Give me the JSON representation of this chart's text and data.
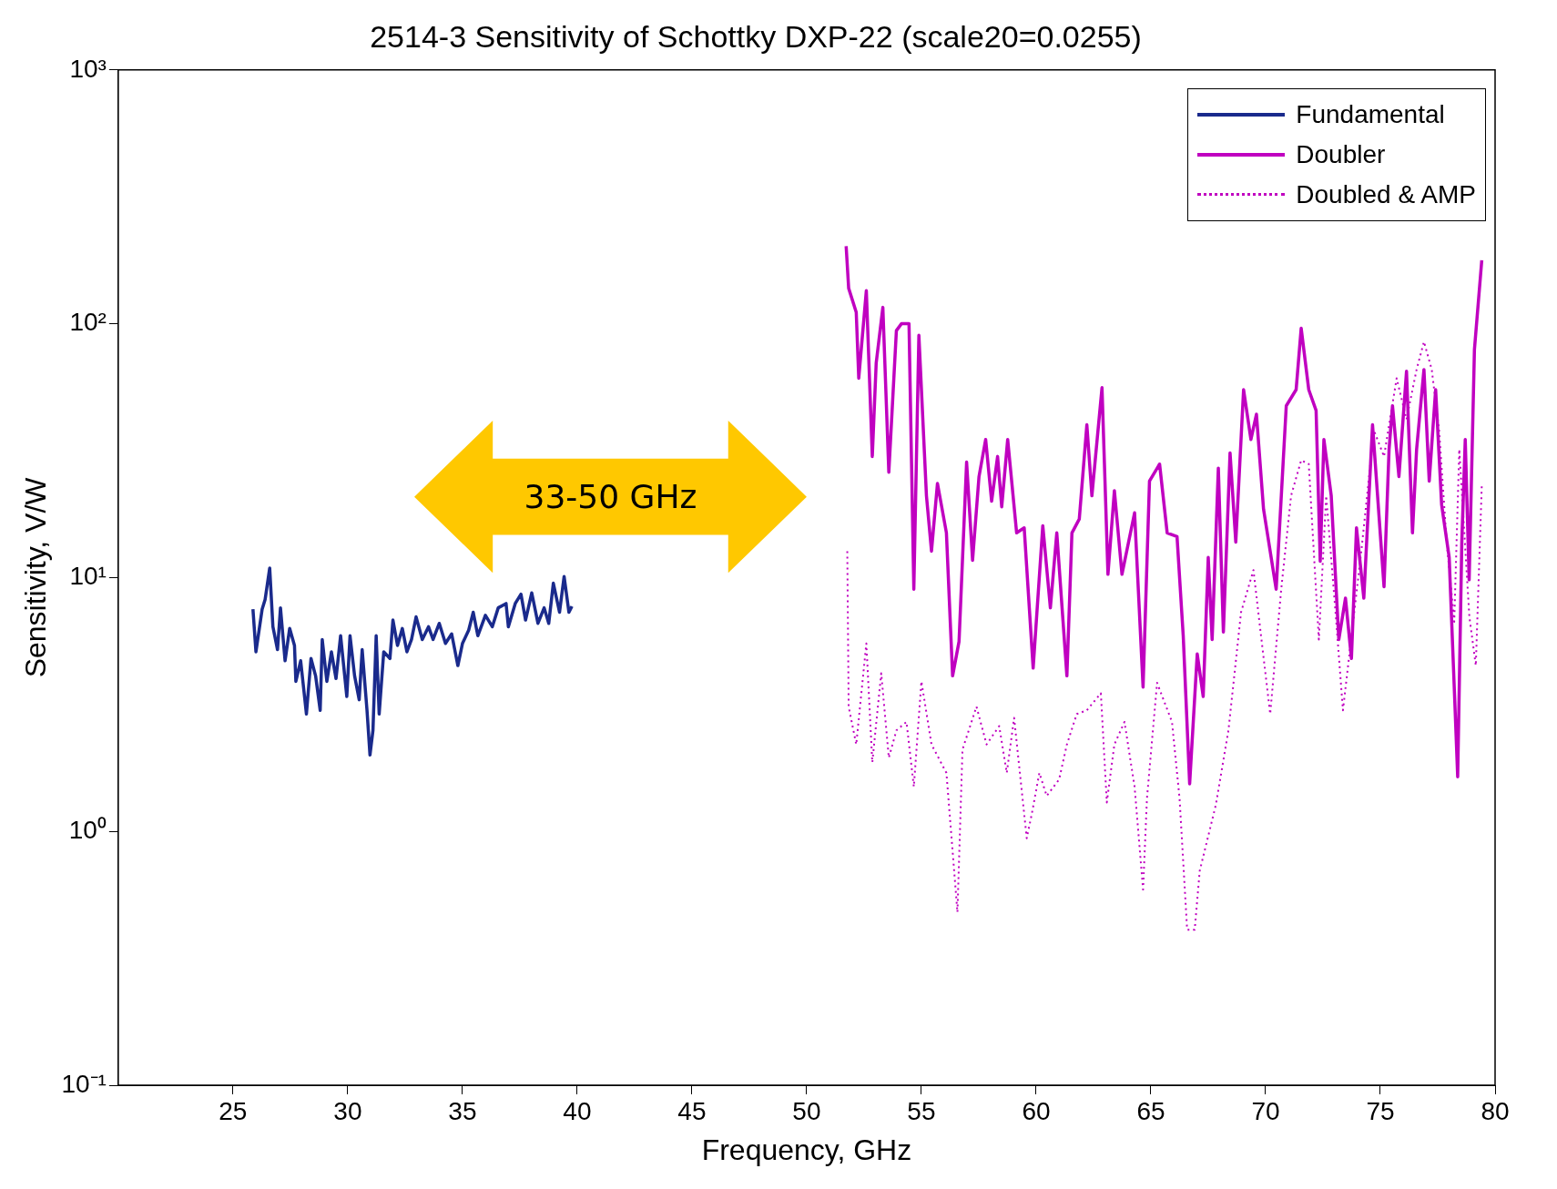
{
  "chart_data": {
    "type": "line",
    "title": "2514-3 Sensitivity of Schottky DXP-22 (scale20=0.0255)",
    "xlabel": "Frequency, GHz",
    "ylabel": "Sensitivity, V/W",
    "log": "y",
    "grid": false,
    "legend": "top right",
    "marker": "none",
    "xlim": [
      20,
      80
    ],
    "xticks": [
      25,
      30,
      35,
      40,
      45,
      50,
      55,
      60,
      65,
      70,
      75,
      80
    ],
    "ylim": [
      0.1,
      1000
    ],
    "yticks": [
      {
        "value": 0.1,
        "label": "10⁻¹"
      },
      {
        "value": 1,
        "label": "10⁰"
      },
      {
        "value": 10,
        "label": "10¹"
      },
      {
        "value": 100,
        "label": "10²"
      },
      {
        "value": 1000,
        "label": "10³"
      }
    ],
    "annotations": [
      "33-50 GHz"
    ],
    "series": [
      {
        "name": "Fundamental",
        "color": "#1a2a8c",
        "line_style": "solid",
        "x": [
          25.87,
          26.0,
          26.27,
          26.4,
          26.6,
          26.74,
          26.94,
          27.07,
          27.27,
          27.47,
          27.68,
          27.74,
          27.95,
          28.2,
          28.4,
          28.6,
          28.8,
          28.89,
          29.09,
          29.29,
          29.49,
          29.69,
          29.96,
          30.1,
          30.3,
          30.5,
          30.63,
          30.84,
          30.97,
          31.1,
          31.24,
          31.37,
          31.57,
          31.84,
          31.97,
          32.17,
          32.38,
          32.58,
          32.78,
          32.98,
          33.25,
          33.52,
          33.72,
          33.99,
          34.26,
          34.53,
          34.8,
          35.0,
          35.27,
          35.47,
          35.67,
          36.0,
          36.3,
          36.56,
          36.9,
          37.0,
          37.3,
          37.55,
          37.75,
          38.02,
          38.29,
          38.56,
          38.76,
          38.96,
          39.23,
          39.43,
          39.64,
          39.77
        ],
        "values": [
          7.5,
          5.1,
          7.5,
          8.2,
          10.9,
          6.4,
          5.2,
          7.6,
          4.7,
          6.3,
          5.4,
          3.9,
          4.7,
          2.9,
          4.8,
          4.1,
          3.0,
          5.7,
          3.9,
          5.1,
          4.0,
          5.9,
          3.4,
          5.9,
          4.1,
          3.3,
          5.2,
          3.0,
          2.0,
          2.5,
          5.9,
          2.9,
          5.1,
          4.8,
          6.8,
          5.4,
          6.3,
          5.1,
          5.7,
          7.0,
          5.7,
          6.4,
          5.7,
          6.6,
          5.5,
          6.0,
          4.5,
          5.5,
          6.2,
          7.3,
          5.9,
          7.1,
          6.4,
          7.6,
          7.9,
          6.4,
          7.9,
          8.6,
          6.8,
          8.7,
          6.6,
          7.6,
          6.6,
          9.5,
          7.3,
          10.1,
          7.3,
          7.7
        ]
      },
      {
        "name": "Doubler",
        "color": "#c000c0",
        "line_style": "solid",
        "x": [
          51.72,
          51.83,
          52.16,
          52.27,
          52.6,
          52.86,
          53.03,
          53.32,
          53.58,
          53.91,
          54.13,
          54.46,
          54.67,
          54.89,
          55.22,
          55.44,
          55.7,
          56.09,
          56.36,
          56.64,
          56.97,
          57.23,
          57.51,
          57.8,
          58.06,
          58.32,
          58.5,
          58.76,
          59.15,
          59.48,
          59.87,
          60.29,
          60.62,
          60.9,
          61.34,
          61.56,
          61.88,
          62.21,
          62.43,
          62.87,
          63.13,
          63.41,
          63.74,
          64.29,
          64.66,
          64.94,
          65.38,
          65.71,
          66.14,
          66.41,
          66.69,
          67.02,
          67.28,
          67.5,
          67.67,
          67.94,
          68.16,
          68.45,
          68.7,
          69.04,
          69.36,
          69.6,
          69.91,
          70.46,
          70.9,
          71.33,
          71.55,
          71.88,
          72.2,
          72.38,
          72.54,
          72.86,
          73.19,
          73.48,
          73.74,
          73.96,
          74.28,
          74.66,
          75.16,
          75.38,
          75.53,
          75.81,
          76.14,
          76.4,
          76.58,
          76.9,
          77.13,
          77.41,
          77.67,
          78.0,
          78.22,
          78.37,
          78.55,
          78.7,
          78.87,
          79.1,
          79.42
        ],
        "values": [
          202,
          138,
          111,
          61,
          135,
          30,
          70,
          116,
          26,
          94,
          100,
          100,
          9,
          90,
          21,
          12.7,
          23.5,
          15,
          4.1,
          5.6,
          28.5,
          11.7,
          25,
          35,
          20,
          30,
          19,
          35,
          15,
          15.7,
          4.4,
          16,
          7.6,
          15,
          4.1,
          15,
          17,
          40,
          21,
          56,
          10.3,
          22,
          10.3,
          18,
          3.7,
          24,
          28,
          15,
          14.5,
          5.9,
          1.54,
          5.0,
          3.4,
          12,
          5.7,
          27,
          6.1,
          31,
          13.8,
          55,
          35,
          44,
          18.6,
          9.0,
          47.5,
          55,
          96,
          55,
          45.5,
          11.6,
          35,
          21,
          5.7,
          8.3,
          4.8,
          15.7,
          8.3,
          40,
          9.2,
          32,
          47.5,
          25,
          65,
          15,
          32,
          66,
          24,
          55,
          19.4,
          12,
          3.7,
          1.64,
          13.8,
          35,
          9.8,
          79,
          178
        ]
      },
      {
        "name": "Doubled & AMP",
        "color": "#c000c0",
        "line_style": "dotted",
        "x": [
          51.77,
          51.83,
          52.16,
          52.6,
          52.86,
          53.25,
          53.58,
          53.91,
          54.35,
          54.67,
          55.0,
          55.44,
          56.09,
          56.57,
          56.79,
          57.4,
          57.84,
          58.39,
          58.72,
          59.04,
          59.59,
          59.81,
          60.14,
          60.46,
          61.0,
          61.34,
          61.77,
          62.21,
          62.82,
          63.08,
          63.41,
          63.85,
          64.29,
          64.66,
          64.83,
          65.27,
          65.92,
          66.25,
          66.58,
          66.91,
          67.13,
          67.83,
          68.38,
          68.93,
          69.47,
          69.8,
          70.2,
          70.68,
          71.11,
          71.55,
          71.88,
          72.32,
          72.64,
          73.08,
          73.37,
          73.63,
          74.17,
          74.72,
          75.16,
          75.71,
          76.14,
          76.58,
          76.9,
          77.24,
          77.56,
          77.89,
          78.22,
          78.44,
          78.88,
          79.16,
          79.42
        ],
        "values": [
          12.7,
          3.1,
          2.2,
          5.5,
          1.87,
          4.2,
          1.95,
          2.5,
          2.7,
          1.5,
          3.9,
          2.2,
          1.7,
          0.48,
          2.1,
          3.1,
          2.2,
          2.6,
          1.7,
          2.8,
          0.94,
          1.17,
          1.7,
          1.38,
          1.6,
          2.2,
          2.9,
          3.0,
          3.5,
          1.3,
          2.2,
          2.7,
          1.5,
          0.59,
          1.35,
          3.85,
          2.7,
          1.35,
          0.41,
          0.41,
          0.7,
          1.27,
          2.5,
          7.3,
          10.7,
          5.9,
          2.9,
          9.0,
          21,
          29,
          28,
          5.7,
          21,
          6.7,
          3.0,
          4.8,
          12.7,
          38,
          30,
          61,
          42,
          66,
          85,
          66,
          38,
          13.8,
          6.7,
          32,
          7,
          4.5,
          23
        ]
      }
    ]
  }
}
